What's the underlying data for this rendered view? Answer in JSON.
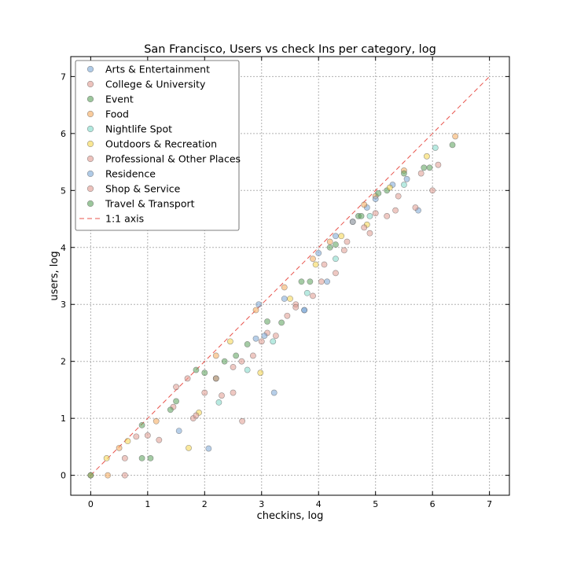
{
  "chart_data": {
    "type": "scatter",
    "title": "San Francisco, Users vs check Ins per category, log",
    "xlabel": "checkins, log",
    "ylabel": "users, log",
    "xlim": [
      -0.35,
      7.35
    ],
    "ylim": [
      -0.35,
      7.35
    ],
    "xticks": [
      0,
      1,
      2,
      3,
      4,
      5,
      6,
      7
    ],
    "yticks": [
      0,
      1,
      2,
      3,
      4,
      5,
      6,
      7
    ],
    "grid": true,
    "legend_position": "top-left",
    "reference_line": {
      "name": "1:1 axis",
      "from": [
        0,
        0
      ],
      "to": [
        7,
        7
      ],
      "color": "#e8554e"
    },
    "series": [
      {
        "name": "Arts & Entertainment",
        "color": "#7aa6d6",
        "x": [
          1.55,
          2.07,
          3.22,
          3.75,
          2.95,
          4.0,
          4.3,
          4.85,
          5.3,
          5.55,
          5.75,
          2.9
        ],
        "y": [
          0.78,
          0.47,
          1.45,
          2.9,
          3.0,
          3.9,
          4.2,
          4.7,
          5.1,
          5.2,
          4.65,
          2.4
        ]
      },
      {
        "name": "College & University",
        "color": "#e09a90",
        "x": [
          0.6,
          1.45,
          1.8,
          2.3,
          2.65,
          3.1,
          3.6,
          4.1,
          4.5,
          5.0,
          5.4
        ],
        "y": [
          0.3,
          1.2,
          1.0,
          1.4,
          2.0,
          2.5,
          3.0,
          3.7,
          4.1,
          4.6,
          4.9
        ]
      },
      {
        "name": "Event",
        "color": "#5aa05a",
        "x": [
          0.9,
          1.05,
          1.4,
          1.85,
          2.2,
          2.55,
          3.1,
          3.7,
          4.2,
          4.7,
          5.2,
          5.85,
          6.35
        ],
        "y": [
          0.3,
          0.3,
          1.15,
          1.85,
          1.7,
          2.1,
          2.7,
          3.4,
          4.0,
          4.55,
          5.0,
          5.4,
          5.8
        ]
      },
      {
        "name": "Food",
        "color": "#f5a95a",
        "x": [
          0.0,
          0.3,
          0.5,
          1.15,
          2.2,
          2.9,
          3.4,
          3.9,
          4.2,
          4.6,
          4.8,
          5.0,
          5.5,
          6.4
        ],
        "y": [
          0.0,
          0.0,
          0.48,
          0.95,
          2.1,
          2.9,
          3.3,
          3.8,
          4.1,
          4.45,
          4.75,
          4.9,
          5.35,
          5.95
        ]
      },
      {
        "name": "Nightlife Spot",
        "color": "#7dd8c8",
        "x": [
          2.25,
          2.75,
          3.2,
          3.8,
          4.3,
          4.9,
          5.5,
          6.05
        ],
        "y": [
          1.28,
          1.85,
          2.35,
          3.2,
          3.8,
          4.55,
          5.1,
          5.75
        ]
      },
      {
        "name": "Outdoors & Recreation",
        "color": "#f5d54a",
        "x": [
          0.28,
          0.65,
          1.72,
          1.9,
          2.45,
          2.98,
          3.5,
          3.95,
          4.4,
          4.85,
          5.25,
          5.9
        ],
        "y": [
          0.3,
          0.6,
          0.48,
          1.1,
          2.35,
          1.8,
          3.1,
          3.7,
          4.2,
          4.4,
          5.05,
          5.6
        ]
      },
      {
        "name": "Professional & Other Places",
        "color": "#e09a90",
        "x": [
          0.8,
          1.2,
          1.7,
          2.0,
          2.5,
          2.66,
          3.0,
          3.45,
          3.9,
          4.3,
          4.8,
          5.2,
          5.7,
          6.0
        ],
        "y": [
          0.68,
          0.62,
          1.7,
          1.45,
          1.45,
          0.95,
          2.35,
          2.8,
          3.15,
          3.55,
          4.35,
          4.55,
          4.7,
          5.0
        ]
      },
      {
        "name": "Residence",
        "color": "#7aa6d6",
        "x": [
          3.05,
          3.4,
          3.75,
          4.15,
          4.6,
          5.0
        ],
        "y": [
          2.45,
          3.1,
          2.9,
          3.4,
          4.45,
          4.85
        ]
      },
      {
        "name": "Shop & Service",
        "color": "#e09a90",
        "x": [
          0.6,
          1.0,
          1.5,
          1.85,
          2.2,
          2.5,
          2.85,
          3.25,
          3.6,
          4.05,
          4.45,
          4.9,
          5.35,
          5.8,
          6.1
        ],
        "y": [
          0.0,
          0.7,
          1.55,
          1.05,
          1.7,
          1.9,
          2.1,
          2.45,
          2.95,
          3.4,
          3.95,
          4.25,
          4.65,
          5.3,
          5.45
        ]
      },
      {
        "name": "Travel & Transport",
        "color": "#5aa05a",
        "x": [
          0.0,
          0.9,
          1.5,
          2.0,
          2.35,
          2.75,
          3.35,
          3.85,
          4.3,
          4.75,
          5.05,
          5.5,
          5.95
        ],
        "y": [
          0.0,
          0.88,
          1.3,
          1.8,
          2.0,
          2.3,
          2.68,
          3.4,
          4.05,
          4.55,
          4.95,
          5.3,
          5.4
        ]
      }
    ]
  }
}
